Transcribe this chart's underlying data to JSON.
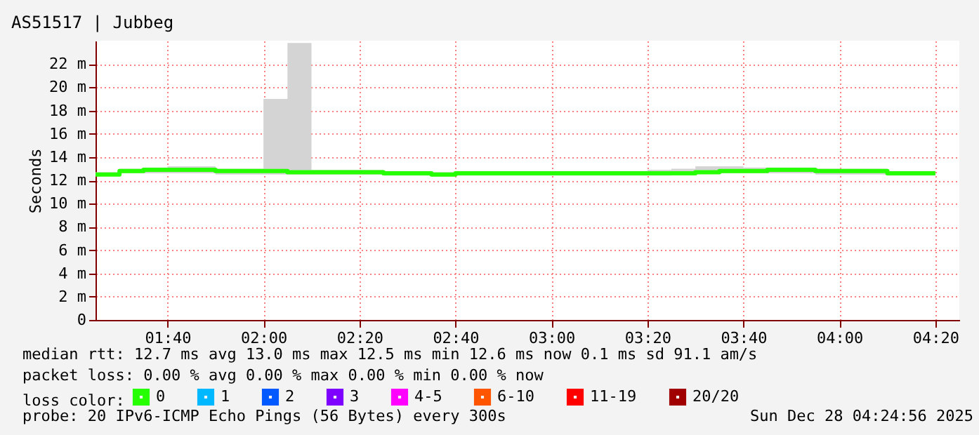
{
  "chart_data": {
    "type": "step",
    "title": "AS51517 | Jubbeg",
    "ylabel": "Seconds",
    "legend_title": "loss color:",
    "legend": "bottom",
    "grid": true,
    "marker": "none",
    "line_style": "solid",
    "x": [
      "2025-12-28T01:25",
      "2025-12-28T01:30",
      "2025-12-28T01:35",
      "2025-12-28T01:40",
      "2025-12-28T01:45",
      "2025-12-28T01:50",
      "2025-12-28T01:55",
      "2025-12-28T02:00",
      "2025-12-28T02:05",
      "2025-12-28T02:10",
      "2025-12-28T02:15",
      "2025-12-28T02:20",
      "2025-12-28T02:25",
      "2025-12-28T02:30",
      "2025-12-28T02:35",
      "2025-12-28T02:40",
      "2025-12-28T02:45",
      "2025-12-28T02:50",
      "2025-12-28T02:55",
      "2025-12-28T03:00",
      "2025-12-28T03:05",
      "2025-12-28T03:10",
      "2025-12-28T03:15",
      "2025-12-28T03:20",
      "2025-12-28T03:25",
      "2025-12-28T03:30",
      "2025-12-28T03:35",
      "2025-12-28T03:40",
      "2025-12-28T03:45",
      "2025-12-28T03:50",
      "2025-12-28T03:55",
      "2025-12-28T04:00",
      "2025-12-28T04:05",
      "2025-12-28T04:10",
      "2025-12-28T04:15",
      "2025-12-28T04:20"
    ],
    "xlim": [
      "2025-12-28T01:25",
      "2025-12-28T04:25"
    ],
    "xticks": [
      {
        "value": "2025-12-28T01:40",
        "label": "01:40"
      },
      {
        "value": "2025-12-28T02:00",
        "label": "02:00"
      },
      {
        "value": "2025-12-28T02:20",
        "label": "02:20"
      },
      {
        "value": "2025-12-28T02:40",
        "label": "02:40"
      },
      {
        "value": "2025-12-28T03:00",
        "label": "03:00"
      },
      {
        "value": "2025-12-28T03:20",
        "label": "03:20"
      },
      {
        "value": "2025-12-28T03:40",
        "label": "03:40"
      },
      {
        "value": "2025-12-28T04:00",
        "label": "04:00"
      },
      {
        "value": "2025-12-28T04:20",
        "label": "04:20"
      }
    ],
    "ylim": [
      0,
      24
    ],
    "yticks": [
      0,
      {
        "value": 2,
        "label": "2 m"
      },
      {
        "value": 4,
        "label": "4 m"
      },
      {
        "value": 6,
        "label": "6 m"
      },
      {
        "value": 8,
        "label": "8 m"
      },
      {
        "value": 10,
        "label": "10 m"
      },
      {
        "value": 12,
        "label": "12 m"
      },
      {
        "value": 14,
        "label": "14 m"
      },
      {
        "value": 16,
        "label": "16 m"
      },
      {
        "value": 18,
        "label": "18 m"
      },
      {
        "value": 20,
        "label": "20 m"
      },
      {
        "value": 22,
        "label": "22 m"
      }
    ],
    "series": [
      {
        "name": "0",
        "color": "#26ff00",
        "values": [
          12.5,
          12.8,
          12.9,
          12.9,
          12.9,
          12.8,
          12.8,
          12.8,
          12.7,
          12.7,
          12.7,
          12.7,
          12.6,
          12.6,
          12.5,
          12.6,
          12.6,
          12.6,
          12.6,
          12.6,
          12.6,
          12.6,
          12.6,
          12.6,
          12.6,
          12.7,
          12.8,
          12.8,
          12.9,
          12.9,
          12.8,
          12.8,
          12.8,
          12.6,
          12.6,
          12.6
        ],
        "lower": [
          12.4,
          12.6,
          12.6,
          12.6,
          12.6,
          12.5,
          12.5,
          12.5,
          12.5,
          12.5,
          12.5,
          12.5,
          12.4,
          12.4,
          12.3,
          12.4,
          12.4,
          12.4,
          12.4,
          12.4,
          12.4,
          12.4,
          12.4,
          12.4,
          12.5,
          12.6,
          12.6,
          12.6,
          12.6,
          12.6,
          12.5,
          12.5,
          12.5,
          12.4,
          12.4,
          12.4
        ],
        "upper": [
          12.7,
          13.0,
          13.1,
          13.2,
          13.2,
          13.0,
          13.0,
          19.0,
          23.8,
          12.9,
          12.9,
          12.9,
          12.8,
          12.8,
          12.7,
          12.8,
          12.8,
          12.8,
          12.8,
          12.8,
          12.8,
          12.8,
          12.8,
          12.9,
          13.0,
          13.2,
          13.2,
          13.1,
          13.1,
          13.1,
          13.0,
          13.0,
          13.0,
          12.8,
          12.8,
          12.8
        ]
      },
      {
        "name": "1",
        "color": "#00b8ff",
        "values": [
          null,
          null,
          null,
          null,
          null,
          null,
          null,
          null,
          null,
          null,
          null,
          null,
          null,
          null,
          null,
          null,
          null,
          null,
          null,
          null,
          null,
          null,
          null,
          null,
          null,
          null,
          null,
          null,
          null,
          null,
          null,
          null,
          null,
          null,
          null,
          null
        ]
      },
      {
        "name": "2",
        "color": "#0059ff",
        "values": [
          null,
          null,
          null,
          null,
          null,
          null,
          null,
          null,
          null,
          null,
          null,
          null,
          null,
          null,
          null,
          null,
          null,
          null,
          null,
          null,
          null,
          null,
          null,
          null,
          null,
          null,
          null,
          null,
          null,
          null,
          null,
          null,
          null,
          null,
          null,
          null
        ]
      },
      {
        "name": "3",
        "color": "#7e00ff",
        "values": [
          null,
          null,
          null,
          null,
          null,
          null,
          null,
          null,
          null,
          null,
          null,
          null,
          null,
          null,
          null,
          null,
          null,
          null,
          null,
          null,
          null,
          null,
          null,
          null,
          null,
          null,
          null,
          null,
          null,
          null,
          null,
          null,
          null,
          null,
          null,
          null
        ]
      },
      {
        "name": "4-5",
        "color": "#ff00ff",
        "values": [
          null,
          null,
          null,
          null,
          null,
          null,
          null,
          null,
          null,
          null,
          null,
          null,
          null,
          null,
          null,
          null,
          null,
          null,
          null,
          null,
          null,
          null,
          null,
          null,
          null,
          null,
          null,
          null,
          null,
          null,
          null,
          null,
          null,
          null,
          null,
          null
        ]
      },
      {
        "name": "6-10",
        "color": "#ff5500",
        "values": [
          null,
          null,
          null,
          null,
          null,
          null,
          null,
          null,
          null,
          null,
          null,
          null,
          null,
          null,
          null,
          null,
          null,
          null,
          null,
          null,
          null,
          null,
          null,
          null,
          null,
          null,
          null,
          null,
          null,
          null,
          null,
          null,
          null,
          null,
          null,
          null
        ]
      },
      {
        "name": "11-19",
        "color": "#ff0000",
        "values": [
          null,
          null,
          null,
          null,
          null,
          null,
          null,
          null,
          null,
          null,
          null,
          null,
          null,
          null,
          null,
          null,
          null,
          null,
          null,
          null,
          null,
          null,
          null,
          null,
          null,
          null,
          null,
          null,
          null,
          null,
          null,
          null,
          null,
          null,
          null,
          null
        ]
      },
      {
        "name": "20/20",
        "color": "#a10000",
        "values": [
          null,
          null,
          null,
          null,
          null,
          null,
          null,
          null,
          null,
          null,
          null,
          null,
          null,
          null,
          null,
          null,
          null,
          null,
          null,
          null,
          null,
          null,
          null,
          null,
          null,
          null,
          null,
          null,
          null,
          null,
          null,
          null,
          null,
          null,
          null,
          null
        ]
      }
    ],
    "annotations": [
      "median rtt:  12.7 ms avg  13.0 ms max  12.5 ms min  12.6 ms now  0.1 ms sd  91.1   am/s",
      "packet loss: 0.00 % avg  0.00 % max  0.00 % min  0.00 % now",
      "probe:       20 IPv6-ICMP Echo Pings (56 Bytes) every 300s",
      "Sun Dec 28 04:24:56 2025"
    ]
  }
}
